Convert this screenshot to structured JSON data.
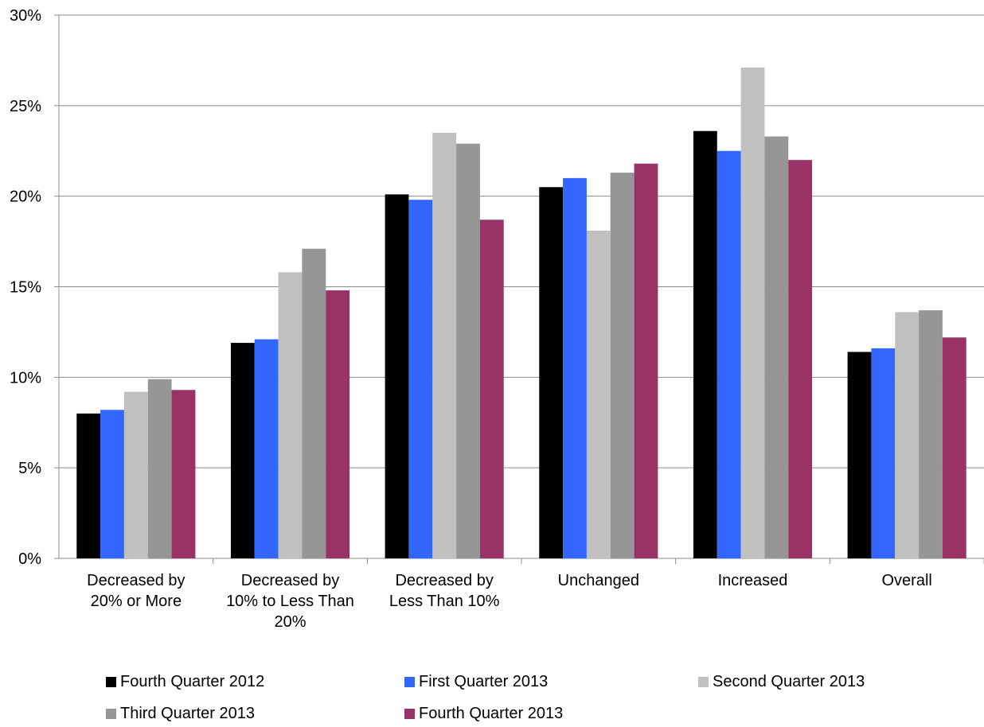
{
  "chart_data": {
    "type": "bar",
    "title": "",
    "xlabel": "",
    "ylabel": "",
    "ylim": [
      0,
      30
    ],
    "yticks": [
      "0%",
      "5%",
      "10%",
      "15%",
      "20%",
      "25%",
      "30%"
    ],
    "grid": true,
    "legend_position": "bottom",
    "categories": [
      [
        "Decreased by",
        "20% or More"
      ],
      [
        "Decreased by",
        "10% to Less Than",
        "20%"
      ],
      [
        "Decreased by",
        "Less Than 10%"
      ],
      [
        "Unchanged"
      ],
      [
        "Increased"
      ],
      [
        "Overall"
      ]
    ],
    "series": [
      {
        "name": "Fourth Quarter 2012",
        "color": "#000000",
        "values": [
          8.0,
          11.9,
          20.1,
          20.5,
          23.6,
          11.4
        ]
      },
      {
        "name": "First Quarter 2013",
        "color": "#3366ff",
        "values": [
          8.2,
          12.1,
          19.8,
          21.0,
          22.5,
          11.6
        ]
      },
      {
        "name": "Second Quarter 2013",
        "color": "#c0c0c0",
        "values": [
          9.2,
          15.8,
          23.5,
          18.1,
          27.1,
          13.6
        ]
      },
      {
        "name": "Third Quarter 2013",
        "color": "#969696",
        "values": [
          9.9,
          17.1,
          22.9,
          21.3,
          23.3,
          13.7
        ]
      },
      {
        "name": "Fourth Quarter 2013",
        "color": "#993366",
        "values": [
          9.3,
          14.8,
          18.7,
          21.8,
          22.0,
          12.2
        ]
      }
    ]
  }
}
